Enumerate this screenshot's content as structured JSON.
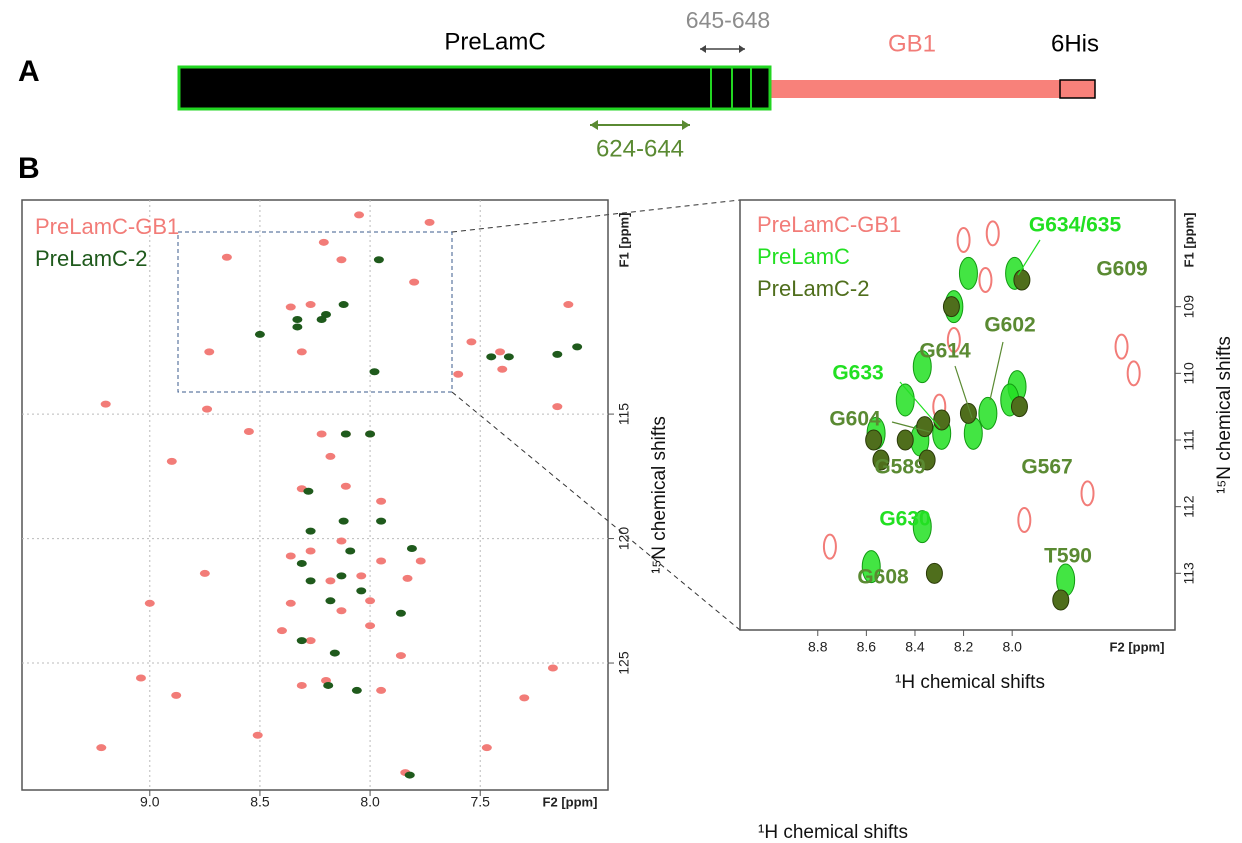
{
  "panel_a": {
    "label": "A",
    "construct": "PreLamC",
    "range_1": "645-648",
    "tag_1": "GB1",
    "tag_2": "6His",
    "range_2": "624-644"
  },
  "panel_b_label": "B",
  "chart_data": [
    {
      "type": "scatter",
      "xlabel": "¹H chemical shifts",
      "ylabel": "¹⁵N chemical shifts",
      "xunit": "F2 [ppm]",
      "yunit": "F1 [ppm]",
      "xlim": [
        9.58,
        6.92
      ],
      "ylim": [
        130.1,
        106.4
      ],
      "xticks": [
        {
          "value": 9,
          "label": "9.0"
        },
        8.5,
        {
          "value": 8,
          "label": "8.0"
        },
        7.5
      ],
      "yticks": [
        115,
        120,
        125
      ],
      "grid": true,
      "series": [
        {
          "name": "PreLamC-GB1",
          "color": "#f27c78",
          "x": [
            8.05,
            7.73,
            8.21,
            8.13,
            8.65,
            7.8,
            8.27,
            8.36,
            7.54,
            8.73,
            8.31,
            7.1,
            7.41,
            7.4,
            7.6,
            7.15,
            9.2,
            8.74,
            8.55,
            8.22,
            8.11,
            8.0,
            8.9,
            8.18,
            8.31,
            8.11,
            7.95,
            8.36,
            8.27,
            8.13,
            7.95,
            7.77,
            8.75,
            8.04,
            7.83,
            8.18,
            9.0,
            8.0,
            8.36,
            8.13,
            8.27,
            8.4,
            8.0,
            7.86,
            8.2,
            8.31,
            9.04,
            8.88,
            7.17,
            8.51,
            9.22,
            7.47,
            7.3,
            7.84,
            7.95
          ],
          "values": [
            107.0,
            107.3,
            108.1,
            108.8,
            108.7,
            109.7,
            110.6,
            110.7,
            112.1,
            112.5,
            112.5,
            110.6,
            112.5,
            113.2,
            113.4,
            114.7,
            114.6,
            114.8,
            115.7,
            115.8,
            115.8,
            115.8,
            116.9,
            116.7,
            118.0,
            117.9,
            118.5,
            120.7,
            120.5,
            120.1,
            120.9,
            120.9,
            121.4,
            121.5,
            121.6,
            121.7,
            122.6,
            122.5,
            122.6,
            122.9,
            124.1,
            123.7,
            123.5,
            124.7,
            125.7,
            125.9,
            125.6,
            126.3,
            125.2,
            127.9,
            128.4,
            128.4,
            126.4,
            129.4,
            126.1
          ]
        },
        {
          "name": "PreLamC-2",
          "color": "#1f5a1c",
          "x": [
            7.96,
            8.33,
            8.22,
            8.33,
            8.12,
            8.2,
            8.5,
            7.98,
            8.11,
            8.0,
            8.28,
            8.12,
            8.27,
            7.95,
            8.09,
            7.81,
            8.31,
            8.13,
            8.27,
            8.04,
            8.18,
            7.86,
            8.31,
            8.16,
            8.19,
            8.06,
            7.06,
            7.15,
            7.37,
            7.45,
            7.82
          ],
          "values": [
            108.8,
            111.2,
            111.2,
            111.5,
            110.6,
            111.0,
            111.8,
            113.3,
            115.8,
            115.8,
            118.1,
            119.3,
            119.7,
            119.3,
            120.5,
            120.4,
            121.0,
            121.5,
            121.7,
            122.1,
            122.5,
            123.0,
            124.1,
            124.6,
            125.9,
            126.1,
            112.3,
            112.6,
            112.7,
            112.7,
            129.5
          ]
        }
      ]
    },
    {
      "type": "scatter",
      "xlabel": "¹H chemical shifts",
      "ylabel": "¹⁵N chemical shifts",
      "xunit": "F2 [ppm]",
      "yunit": "F1 [ppm]",
      "xlim": [
        9.12,
        7.33
      ],
      "ylim": [
        113.85,
        107.4
      ],
      "xticks": [
        8.8,
        8.6,
        8.4,
        8.2,
        {
          "value": 8,
          "label": "8.0"
        }
      ],
      "yticks": [
        109,
        110,
        111,
        112,
        113
      ],
      "grid": false,
      "series": [
        {
          "name": "PreLamC-GB1",
          "color": "#f27c78",
          "x": [
            8.08,
            8.2,
            7.55,
            7.5,
            8.75,
            7.69,
            7.95,
            8.24,
            8.3,
            8.11
          ],
          "values": [
            107.9,
            108.0,
            109.6,
            110.0,
            112.6,
            111.8,
            112.2,
            109.5,
            110.5,
            108.6
          ]
        },
        {
          "name": "PreLamC",
          "color": "#22e022",
          "x": [
            7.99,
            8.18,
            8.24,
            8.37,
            7.98,
            8.01,
            8.1,
            8.16,
            8.29,
            8.38,
            8.44,
            8.56,
            8.37,
            8.58,
            7.78
          ],
          "values": [
            108.5,
            108.5,
            109.0,
            109.9,
            110.2,
            110.4,
            110.6,
            110.9,
            110.9,
            111.0,
            110.4,
            110.9,
            112.3,
            112.9,
            113.1
          ]
        },
        {
          "name": "PreLamC-2",
          "color": "#4f6e1c",
          "x": [
            7.96,
            8.25,
            8.29,
            8.18,
            7.97,
            8.36,
            8.57,
            8.44,
            8.54,
            8.35,
            8.32,
            7.8
          ],
          "values": [
            108.6,
            109.0,
            110.7,
            110.6,
            110.5,
            110.8,
            111.0,
            111.0,
            111.3,
            111.3,
            113.0,
            113.4
          ]
        }
      ],
      "annotations": [
        {
          "text": "G634/635",
          "color": "#22e022"
        },
        {
          "text": "G609",
          "color": "#5a8a32"
        },
        {
          "text": "G602",
          "color": "#5a8a32"
        },
        {
          "text": "G614",
          "color": "#5a8a32"
        },
        {
          "text": "G633",
          "color": "#22e022"
        },
        {
          "text": "G604",
          "color": "#5a8a32"
        },
        {
          "text": "G589",
          "color": "#5a8a32"
        },
        {
          "text": "G567",
          "color": "#5a8a32"
        },
        {
          "text": "G630",
          "color": "#22e022"
        },
        {
          "text": "G608",
          "color": "#5a8a32"
        },
        {
          "text": "T590",
          "color": "#5a8a32"
        }
      ]
    }
  ]
}
